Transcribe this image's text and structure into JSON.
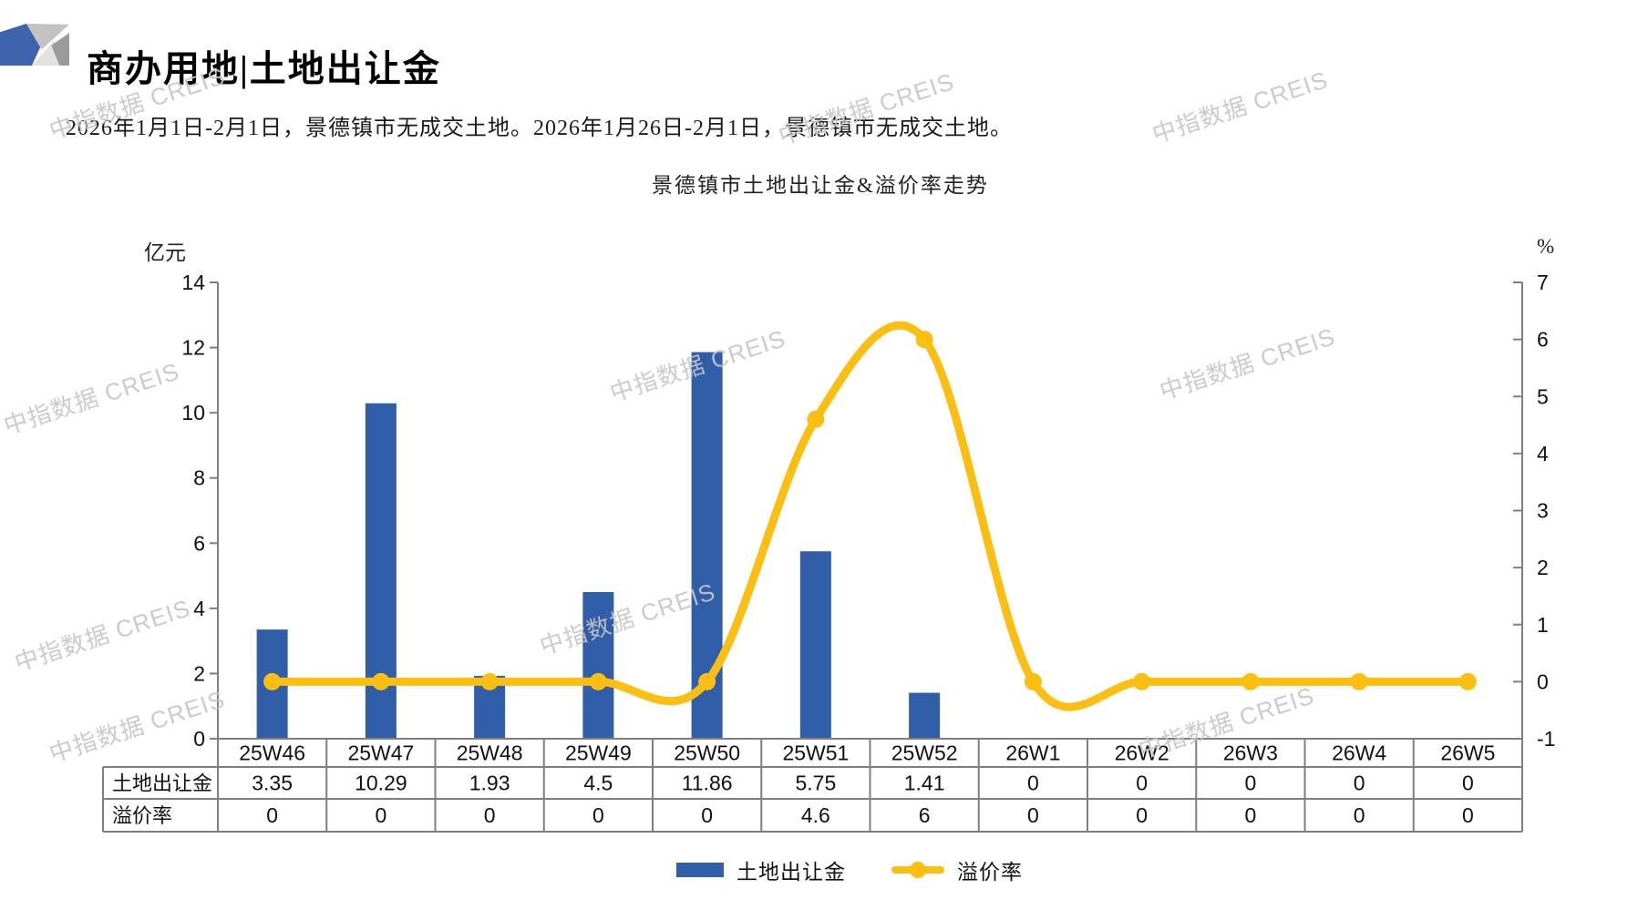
{
  "header": {
    "title": "商办用地|土地出让金",
    "subtitle": "2026年1月1日-2月1日，景德镇市无成交土地。2026年1月26日-2月1日，景德镇市无成交土地。"
  },
  "watermark": {
    "text": "中指数据 CREIS"
  },
  "legend": {
    "bar_label": "土地出让金",
    "line_label": "溢价率"
  },
  "colors": {
    "bar": "#305EA8",
    "line": "#FBBE13",
    "grid": "#7F7F7F"
  },
  "chart_data": {
    "type": "bar",
    "subtype": "bar+line dual axis with data table",
    "title": "景德镇市土地出让金&溢价率走势",
    "categories": [
      "25W46",
      "25W47",
      "25W48",
      "25W49",
      "25W50",
      "25W51",
      "25W52",
      "26W1",
      "26W2",
      "26W3",
      "26W4",
      "26W5"
    ],
    "series": [
      {
        "name": "土地出让金",
        "type": "bar",
        "axis": "left",
        "unit": "亿元",
        "color": "#305EA8",
        "values": [
          3.35,
          10.29,
          1.93,
          4.5,
          11.86,
          5.75,
          1.41,
          0,
          0,
          0,
          0,
          0
        ]
      },
      {
        "name": "溢价率",
        "type": "line",
        "axis": "right",
        "unit": "%",
        "color": "#FBBE13",
        "values": [
          0,
          0,
          0,
          0,
          0,
          4.6,
          6,
          0,
          0,
          0,
          0,
          0
        ]
      }
    ],
    "left_axis": {
      "unit": "亿元",
      "min": 0,
      "max": 14,
      "ticks": [
        0,
        2,
        4,
        6,
        8,
        10,
        12,
        14
      ]
    },
    "right_axis": {
      "unit": "%",
      "min": -1,
      "max": 7,
      "ticks": [
        -1,
        0,
        1,
        2,
        3,
        4,
        5,
        6,
        7
      ]
    },
    "table": {
      "row_labels": [
        "土地出让金",
        "溢价率"
      ]
    },
    "legend_position": "bottom",
    "grid": false
  }
}
